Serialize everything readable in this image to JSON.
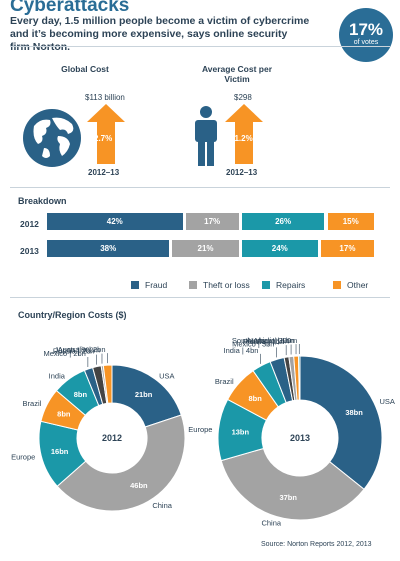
{
  "header": {
    "title": "Cyberattacks",
    "subtitle": "Every day, 1.5 million people become a victim of cybercrime and it’s becoming more expensive, says online security firm Norton.",
    "votes_value": "17%",
    "votes_label": "of votes"
  },
  "summary": {
    "global_cost": {
      "label": "Global Cost",
      "amount": "$113 billion",
      "change": "2.7%",
      "period": "2012–13"
    },
    "avg_cost": {
      "label": "Average Cost per Victim",
      "amount": "$298",
      "change": "51.2%",
      "period": "2012–13"
    }
  },
  "colors": {
    "fraud": "#2a6187",
    "theft": "#a3a3a3",
    "repairs": "#1b98a8",
    "other": "#f79425",
    "accent": "#2a6d96"
  },
  "breakdown": {
    "title": "Breakdown",
    "rows": [
      {
        "year": "2012",
        "fraud": 42,
        "theft": 17,
        "repairs": 26,
        "other": 15,
        "labels": [
          "42%",
          "17%",
          "26%",
          "15%"
        ]
      },
      {
        "year": "2013",
        "fraud": 38,
        "theft": 21,
        "repairs": 24,
        "other": 17,
        "labels": [
          "38%",
          "21%",
          "24%",
          "17%"
        ]
      }
    ],
    "legend": [
      "Fraud",
      "Theft or loss",
      "Repairs",
      "Other"
    ]
  },
  "costs_title": "Country/Region Costs ($)",
  "source": "Source: Norton Reports 2012, 2013",
  "chart_data": [
    {
      "type": "pie",
      "title": "2012",
      "slices": [
        {
          "name": "USA",
          "value": 21,
          "label": "21bn",
          "color": "#2a6187"
        },
        {
          "name": "China",
          "value": 46,
          "label": "46bn",
          "color": "#a3a3a3"
        },
        {
          "name": "Europe",
          "value": 16,
          "label": "16bn",
          "color": "#1b98a8"
        },
        {
          "name": "Brazil",
          "value": 8,
          "label": "8bn",
          "color": "#f79425"
        },
        {
          "name": "India",
          "value": 8,
          "label": "8bn",
          "color": "#1b98a8"
        },
        {
          "name": "Mexico",
          "value": 2,
          "label": "2bn",
          "color": "#2a6187"
        },
        {
          "name": "Russia",
          "value": 2,
          "label": "2bn",
          "color": "#444444"
        },
        {
          "name": "Japan",
          "value": 0.5,
          "label": "500m",
          "color": "#a3a3a3"
        },
        {
          "name": "Australia",
          "value": 2,
          "label": "2bn",
          "color": "#f79425"
        }
      ]
    },
    {
      "type": "pie",
      "title": "2013",
      "slices": [
        {
          "name": "USA",
          "value": 38,
          "label": "38bn",
          "color": "#2a6187"
        },
        {
          "name": "China",
          "value": 37,
          "label": "37bn",
          "color": "#a3a3a3"
        },
        {
          "name": "Europe",
          "value": 13,
          "label": "13bn",
          "color": "#1b98a8"
        },
        {
          "name": "Brazil",
          "value": 8,
          "label": "8bn",
          "color": "#f79425"
        },
        {
          "name": "India",
          "value": 4,
          "label": "4bn",
          "color": "#1b98a8"
        },
        {
          "name": "Mexico",
          "value": 3,
          "label": "3bn",
          "color": "#2a6187"
        },
        {
          "name": "Russia",
          "value": 1,
          "label": "1bn",
          "color": "#444444"
        },
        {
          "name": "Japan",
          "value": 1,
          "label": "1bn",
          "color": "#a3a3a3"
        },
        {
          "name": "Australia",
          "value": 1,
          "label": "1bn",
          "color": "#f79425"
        },
        {
          "name": "South Africa",
          "value": 0.3,
          "label": "300m",
          "color": "#1b98a8"
        }
      ]
    }
  ]
}
